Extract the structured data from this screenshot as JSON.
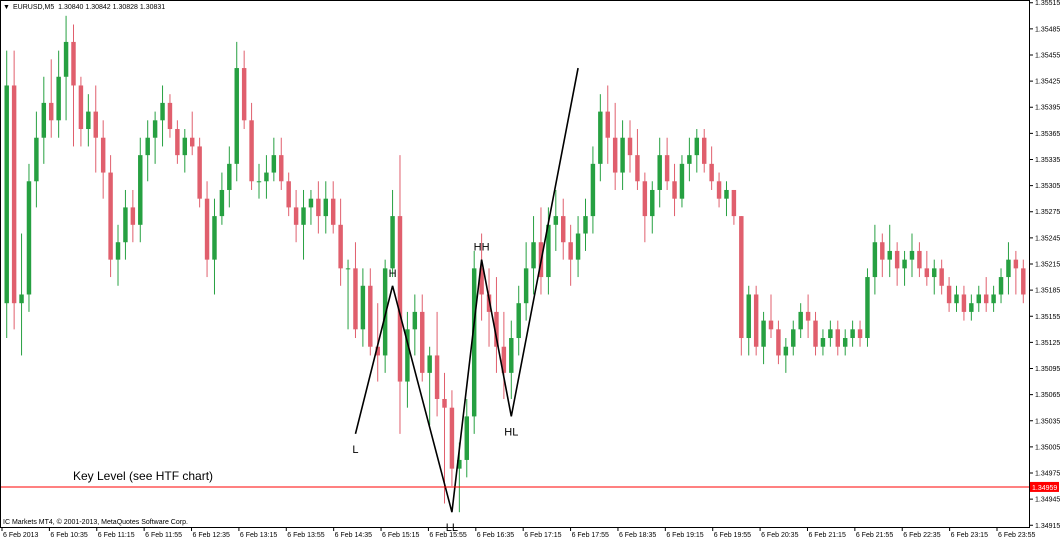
{
  "header": {
    "triangle_icon": "triangle-down-icon",
    "text": "EURUSD,M5  1.30840 1.30842 1.30828 1.30831"
  },
  "footer": {
    "copyright": "IC Markets MT4, © 2001-2013, MetaQuotes Software Corp."
  },
  "chart_data": {
    "type": "candlestick",
    "symbol": "EURUSD",
    "timeframe": "M5",
    "ohlc_header": [
      1.3084,
      1.30842,
      1.30828,
      1.30831
    ],
    "ylim": [
      1.34913,
      1.35517
    ],
    "y_ticks": [
      {
        "value": 1.35515,
        "label": "1.35515"
      },
      {
        "value": 1.35485,
        "label": "1.35485"
      },
      {
        "value": 1.35455,
        "label": "1.35455"
      },
      {
        "value": 1.35425,
        "label": "1.35425"
      },
      {
        "value": 1.35395,
        "label": "1.35395"
      },
      {
        "value": 1.35365,
        "label": "1.35365"
      },
      {
        "value": 1.35335,
        "label": "1.35335"
      },
      {
        "value": 1.35305,
        "label": "1.35305"
      },
      {
        "value": 1.35275,
        "label": "1.35275"
      },
      {
        "value": 1.35245,
        "label": "1.35245"
      },
      {
        "value": 1.35215,
        "label": "1.35215"
      },
      {
        "value": 1.35185,
        "label": "1.35185"
      },
      {
        "value": 1.35155,
        "label": "1.35155"
      },
      {
        "value": 1.35125,
        "label": "1.35125"
      },
      {
        "value": 1.35095,
        "label": "1.35095"
      },
      {
        "value": 1.35065,
        "label": "1.35065"
      },
      {
        "value": 1.35035,
        "label": "1.35035"
      },
      {
        "value": 1.35005,
        "label": "1.35005"
      },
      {
        "value": 1.34975,
        "label": "1.34975"
      },
      {
        "value": 1.34945,
        "label": "1.34945"
      },
      {
        "value": 1.34915,
        "label": "1.34915"
      }
    ],
    "x_ticks": [
      "6 Feb 2013",
      "6 Feb 10:35",
      "6 Feb 11:15",
      "6 Feb 11:55",
      "6 Feb 12:35",
      "6 Feb 13:15",
      "6 Feb 13:55",
      "6 Feb 14:35",
      "6 Feb 15:15",
      "6 Feb 15:55",
      "6 Feb 16:35",
      "6 Feb 17:15",
      "6 Feb 17:55",
      "6 Feb 18:35",
      "6 Feb 19:15",
      "6 Feb 19:55",
      "6 Feb 20:35",
      "6 Feb 21:15",
      "6 Feb 21:55",
      "6 Feb 22:35",
      "6 Feb 23:15",
      "6 Feb 23:55"
    ],
    "candles": [
      [
        1.3517,
        1.3546,
        1.3513,
        1.3542
      ],
      [
        1.3542,
        1.3546,
        1.3514,
        1.3517
      ],
      [
        1.3517,
        1.3525,
        1.3511,
        1.3518
      ],
      [
        1.3518,
        1.3533,
        1.3516,
        1.3531
      ],
      [
        1.3531,
        1.3539,
        1.3528,
        1.3536
      ],
      [
        1.3536,
        1.3543,
        1.3533,
        1.354
      ],
      [
        1.354,
        1.3545,
        1.3536,
        1.3538
      ],
      [
        1.3538,
        1.3546,
        1.3536,
        1.3543
      ],
      [
        1.3543,
        1.355,
        1.3538,
        1.3547
      ],
      [
        1.3547,
        1.3549,
        1.3535,
        1.3542
      ],
      [
        1.3542,
        1.3543,
        1.3535,
        1.3537
      ],
      [
        1.3537,
        1.3541,
        1.3535,
        1.3539
      ],
      [
        1.3539,
        1.3542,
        1.3532,
        1.3536
      ],
      [
        1.3536,
        1.3538,
        1.3529,
        1.3532
      ],
      [
        1.3532,
        1.3534,
        1.352,
        1.3522
      ],
      [
        1.3522,
        1.3526,
        1.3519,
        1.3524
      ],
      [
        1.3524,
        1.353,
        1.3522,
        1.3528
      ],
      [
        1.3528,
        1.353,
        1.3524,
        1.3526
      ],
      [
        1.3526,
        1.3536,
        1.3524,
        1.3534
      ],
      [
        1.3534,
        1.3538,
        1.3531,
        1.3536
      ],
      [
        1.3536,
        1.3539,
        1.3533,
        1.3538
      ],
      [
        1.3538,
        1.3542,
        1.3535,
        1.354
      ],
      [
        1.354,
        1.3541,
        1.3536,
        1.3537
      ],
      [
        1.3537,
        1.3538,
        1.3533,
        1.3534
      ],
      [
        1.3534,
        1.3537,
        1.3532,
        1.3536
      ],
      [
        1.3536,
        1.3539,
        1.3534,
        1.3535
      ],
      [
        1.3535,
        1.3536,
        1.3528,
        1.3529
      ],
      [
        1.3529,
        1.3531,
        1.352,
        1.3522
      ],
      [
        1.3522,
        1.3529,
        1.3518,
        1.3527
      ],
      [
        1.3527,
        1.3532,
        1.3526,
        1.353
      ],
      [
        1.353,
        1.3535,
        1.3528,
        1.3533
      ],
      [
        1.3533,
        1.3547,
        1.3531,
        1.3544
      ],
      [
        1.3544,
        1.3546,
        1.3537,
        1.3538
      ],
      [
        1.3538,
        1.354,
        1.353,
        1.3531
      ],
      [
        1.3531,
        1.3533,
        1.3529,
        1.3531
      ],
      [
        1.3531,
        1.3534,
        1.3529,
        1.3532
      ],
      [
        1.3532,
        1.3536,
        1.3531,
        1.3534
      ],
      [
        1.3534,
        1.3536,
        1.353,
        1.3531
      ],
      [
        1.3531,
        1.3532,
        1.3527,
        1.3528
      ],
      [
        1.3528,
        1.353,
        1.3524,
        1.3526
      ],
      [
        1.3526,
        1.353,
        1.3522,
        1.3528
      ],
      [
        1.3528,
        1.353,
        1.3526,
        1.3529
      ],
      [
        1.3529,
        1.3531,
        1.3525,
        1.3527
      ],
      [
        1.3527,
        1.3531,
        1.3525,
        1.3529
      ],
      [
        1.3529,
        1.3531,
        1.3525,
        1.3526
      ],
      [
        1.3526,
        1.3529,
        1.3519,
        1.3521
      ],
      [
        1.3521,
        1.3522,
        1.3514,
        1.3521
      ],
      [
        1.3521,
        1.3524,
        1.3513,
        1.3514
      ],
      [
        1.3514,
        1.3521,
        1.3512,
        1.3519
      ],
      [
        1.3519,
        1.3521,
        1.3511,
        1.3512
      ],
      [
        1.3512,
        1.3517,
        1.3508,
        1.3511
      ],
      [
        1.3511,
        1.3522,
        1.3509,
        1.3521
      ],
      [
        1.3521,
        1.353,
        1.352,
        1.3527
      ],
      [
        1.3527,
        1.3534,
        1.3502,
        1.3508
      ],
      [
        1.3508,
        1.3516,
        1.3505,
        1.3514
      ],
      [
        1.3514,
        1.3518,
        1.3511,
        1.3516
      ],
      [
        1.3516,
        1.3518,
        1.3508,
        1.3509
      ],
      [
        1.3509,
        1.3512,
        1.3503,
        1.3511
      ],
      [
        1.3511,
        1.3516,
        1.3504,
        1.3506
      ],
      [
        1.3506,
        1.3509,
        1.3494,
        1.3505
      ],
      [
        1.3505,
        1.3507,
        1.3496,
        1.3498
      ],
      [
        1.3498,
        1.3501,
        1.3493,
        1.3499
      ],
      [
        1.3499,
        1.3506,
        1.3497,
        1.3504
      ],
      [
        1.3504,
        1.3523,
        1.3502,
        1.3521
      ],
      [
        1.3521,
        1.3525,
        1.3515,
        1.3518
      ],
      [
        1.3518,
        1.3521,
        1.3512,
        1.3516
      ],
      [
        1.3516,
        1.352,
        1.3509,
        1.3512
      ],
      [
        1.3512,
        1.3516,
        1.3506,
        1.3509
      ],
      [
        1.3509,
        1.3515,
        1.3506,
        1.3513
      ],
      [
        1.3513,
        1.3519,
        1.3511,
        1.3517
      ],
      [
        1.3517,
        1.3524,
        1.3515,
        1.3521
      ],
      [
        1.3521,
        1.3527,
        1.3518,
        1.3524
      ],
      [
        1.3524,
        1.3528,
        1.3518,
        1.352
      ],
      [
        1.352,
        1.3528,
        1.3518,
        1.3526
      ],
      [
        1.3526,
        1.353,
        1.3523,
        1.3527
      ],
      [
        1.3527,
        1.3529,
        1.3522,
        1.3524
      ],
      [
        1.3524,
        1.3526,
        1.3519,
        1.3522
      ],
      [
        1.3522,
        1.3527,
        1.352,
        1.3525
      ],
      [
        1.3525,
        1.3529,
        1.3523,
        1.3527
      ],
      [
        1.3527,
        1.3535,
        1.3525,
        1.3533
      ],
      [
        1.3533,
        1.3541,
        1.3531,
        1.3539
      ],
      [
        1.3539,
        1.3542,
        1.3533,
        1.3536
      ],
      [
        1.3536,
        1.354,
        1.353,
        1.3532
      ],
      [
        1.3532,
        1.3538,
        1.353,
        1.3536
      ],
      [
        1.3536,
        1.3538,
        1.3532,
        1.3534
      ],
      [
        1.3534,
        1.3537,
        1.353,
        1.3531
      ],
      [
        1.3531,
        1.3532,
        1.3524,
        1.3527
      ],
      [
        1.3527,
        1.3531,
        1.3525,
        1.353
      ],
      [
        1.353,
        1.3536,
        1.3528,
        1.3534
      ],
      [
        1.3534,
        1.3536,
        1.353,
        1.3531
      ],
      [
        1.3531,
        1.3533,
        1.3527,
        1.3529
      ],
      [
        1.3529,
        1.3534,
        1.3528,
        1.3533
      ],
      [
        1.3533,
        1.3536,
        1.3531,
        1.3534
      ],
      [
        1.3534,
        1.3537,
        1.3532,
        1.3536
      ],
      [
        1.3536,
        1.3537,
        1.3532,
        1.3533
      ],
      [
        1.3533,
        1.3535,
        1.353,
        1.3531
      ],
      [
        1.3531,
        1.3532,
        1.3528,
        1.3529
      ],
      [
        1.3529,
        1.3531,
        1.3527,
        1.353
      ],
      [
        1.353,
        1.353,
        1.3526,
        1.3527
      ],
      [
        1.3527,
        1.3527,
        1.3511,
        1.3513
      ],
      [
        1.3513,
        1.3519,
        1.3511,
        1.3518
      ],
      [
        1.3518,
        1.3519,
        1.3511,
        1.3512
      ],
      [
        1.3512,
        1.3516,
        1.351,
        1.3515
      ],
      [
        1.3515,
        1.3518,
        1.3513,
        1.3514
      ],
      [
        1.3514,
        1.3515,
        1.351,
        1.3511
      ],
      [
        1.3511,
        1.3513,
        1.3509,
        1.3512
      ],
      [
        1.3512,
        1.3515,
        1.3511,
        1.3514
      ],
      [
        1.3514,
        1.3517,
        1.3513,
        1.3516
      ],
      [
        1.3516,
        1.3518,
        1.3513,
        1.3515
      ],
      [
        1.3515,
        1.3516,
        1.3511,
        1.3512
      ],
      [
        1.3512,
        1.3514,
        1.3511,
        1.3513
      ],
      [
        1.3513,
        1.3515,
        1.3512,
        1.3514
      ],
      [
        1.3514,
        1.3515,
        1.3511,
        1.3512
      ],
      [
        1.3512,
        1.3514,
        1.3511,
        1.3513
      ],
      [
        1.3513,
        1.3515,
        1.3512,
        1.3514
      ],
      [
        1.3514,
        1.3515,
        1.3512,
        1.3513
      ],
      [
        1.3513,
        1.3521,
        1.3512,
        1.352
      ],
      [
        1.352,
        1.3526,
        1.3518,
        1.3524
      ],
      [
        1.3524,
        1.3525,
        1.352,
        1.3522
      ],
      [
        1.3522,
        1.3526,
        1.352,
        1.3523
      ],
      [
        1.3523,
        1.3524,
        1.3519,
        1.3521
      ],
      [
        1.3521,
        1.3523,
        1.3519,
        1.3522
      ],
      [
        1.3522,
        1.3525,
        1.352,
        1.3523
      ],
      [
        1.3523,
        1.3524,
        1.352,
        1.3521
      ],
      [
        1.3521,
        1.3523,
        1.3519,
        1.352
      ],
      [
        1.352,
        1.3522,
        1.3518,
        1.3521
      ],
      [
        1.3521,
        1.3522,
        1.3518,
        1.3519
      ],
      [
        1.3519,
        1.352,
        1.3516,
        1.3517
      ],
      [
        1.3517,
        1.3519,
        1.3516,
        1.3518
      ],
      [
        1.3518,
        1.3519,
        1.3515,
        1.3516
      ],
      [
        1.3516,
        1.3518,
        1.3515,
        1.3517
      ],
      [
        1.3517,
        1.3519,
        1.3516,
        1.3518
      ],
      [
        1.3518,
        1.352,
        1.3516,
        1.3517
      ],
      [
        1.3517,
        1.3519,
        1.3516,
        1.3518
      ],
      [
        1.3518,
        1.3521,
        1.3517,
        1.352
      ],
      [
        1.352,
        1.3524,
        1.3518,
        1.3522
      ],
      [
        1.3522,
        1.3523,
        1.3518,
        1.3521
      ],
      [
        1.3521,
        1.3522,
        1.3517,
        1.3518
      ]
    ],
    "colors": {
      "bull": "#26a041",
      "bear": "#e05f6d",
      "zigzag": "#000000",
      "key_level": "#ff0000",
      "grid": "#000000"
    },
    "zigzag": [
      {
        "label": "L",
        "candle": 47,
        "price": 1.3502
      },
      {
        "label": "H",
        "candle": 52,
        "price": 1.3519
      },
      {
        "label": "LL",
        "candle": 60,
        "price": 1.3493
      },
      {
        "label": "HH",
        "candle": 64,
        "price": 1.3522
      },
      {
        "label": "HL",
        "candle": 68,
        "price": 1.3504
      },
      {
        "label": "",
        "candle": 77,
        "price": 1.3544
      }
    ],
    "key_level": {
      "price": 1.34959,
      "label": "Key Level (see HTF chart)",
      "tag": "1.34959"
    }
  }
}
